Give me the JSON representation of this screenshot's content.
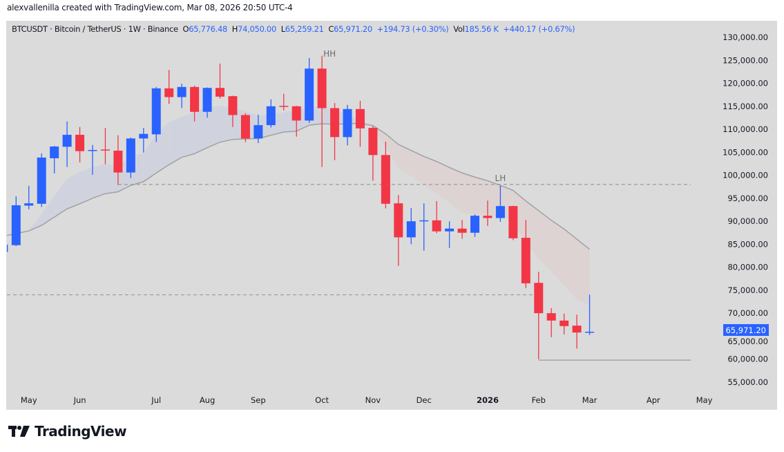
{
  "credit": "alexvallenilla created with TradingView.com, Mar 08, 2026 20:50 UTC-4",
  "legend": {
    "symbol": "BTCUSDT · Bitcoin / TetherUS · 1W · Binance",
    "o_label": "O",
    "o": "65,776.48",
    "h_label": "H",
    "h": "74,050.00",
    "l_label": "L",
    "l": "65,259.21",
    "c_label": "C",
    "c": "65,971.20",
    "change": "+194.73 (+0.30%)",
    "vol_label": "Vol",
    "vol": "185.56 K",
    "vol_change": "+440.17 (+0.67%)"
  },
  "brand": "TradingView",
  "chart_data": {
    "type": "candlestick",
    "title": "",
    "colors": {
      "up": "#2962ff",
      "down": "#f23645",
      "ma": "#a0a0a4",
      "band_up": "#d0d3dd",
      "band_down": "#ddd3d3",
      "background": "#dbdbdb",
      "price_label": "#2962ff"
    },
    "ylim": [
      53000,
      133000
    ],
    "y_ticks": [
      "55,000.00",
      "60,000.00",
      "65,000.00",
      "70,000.00",
      "75,000.00",
      "80,000.00",
      "85,000.00",
      "90,000.00",
      "95,000.00",
      "100,000.00",
      "105,000.00",
      "110,000.00",
      "115,000.00",
      "120,000.00",
      "125,000.00",
      "130,000.00"
    ],
    "y_tick_values": [
      55000,
      60000,
      65000,
      70000,
      75000,
      80000,
      85000,
      90000,
      95000,
      100000,
      105000,
      110000,
      115000,
      120000,
      125000,
      130000
    ],
    "x_ticks": [
      {
        "label": "May",
        "bar": 1.0
      },
      {
        "label": "Jun",
        "bar": 5.0
      },
      {
        "label": "Jul",
        "bar": 11.0
      },
      {
        "label": "Aug",
        "bar": 15.0
      },
      {
        "label": "Sep",
        "bar": 19.0
      },
      {
        "label": "Oct",
        "bar": 24.0
      },
      {
        "label": "Nov",
        "bar": 28.0
      },
      {
        "label": "Dec",
        "bar": 32.0
      },
      {
        "label": "2026",
        "bar": 37.0,
        "bold": true
      },
      {
        "label": "Feb",
        "bar": 41.0
      },
      {
        "label": "Mar",
        "bar": 45.0
      },
      {
        "label": "Apr",
        "bar": 50.0
      },
      {
        "label": "May",
        "bar": 54.0
      }
    ],
    "candles": [
      {
        "o": 83300,
        "h": 85000,
        "l": 83000,
        "c": 84900
      },
      {
        "o": 84800,
        "h": 95430,
        "l": 84600,
        "c": 93475
      },
      {
        "o": 93400,
        "h": 97700,
        "l": 92600,
        "c": 93900
      },
      {
        "o": 93800,
        "h": 104750,
        "l": 93100,
        "c": 103850
      },
      {
        "o": 103700,
        "h": 106400,
        "l": 100400,
        "c": 106250
      },
      {
        "o": 106200,
        "h": 111700,
        "l": 101800,
        "c": 108800
      },
      {
        "o": 108800,
        "h": 110500,
        "l": 102800,
        "c": 105250
      },
      {
        "o": 105300,
        "h": 106600,
        "l": 100100,
        "c": 105500
      },
      {
        "o": 105600,
        "h": 110300,
        "l": 102400,
        "c": 105400
      },
      {
        "o": 105350,
        "h": 108700,
        "l": 97900,
        "c": 100600
      },
      {
        "o": 100600,
        "h": 108200,
        "l": 99400,
        "c": 108000
      },
      {
        "o": 108000,
        "h": 110300,
        "l": 104950,
        "c": 109000
      },
      {
        "o": 108900,
        "h": 119200,
        "l": 107200,
        "c": 118900
      },
      {
        "o": 118900,
        "h": 122900,
        "l": 115500,
        "c": 117000
      },
      {
        "o": 117000,
        "h": 119900,
        "l": 114600,
        "c": 119200
      },
      {
        "o": 119200,
        "h": 119500,
        "l": 111700,
        "c": 113800
      },
      {
        "o": 113800,
        "h": 119100,
        "l": 112500,
        "c": 119000
      },
      {
        "o": 119000,
        "h": 124300,
        "l": 116700,
        "c": 117100
      },
      {
        "o": 117200,
        "h": 117300,
        "l": 110500,
        "c": 113100
      },
      {
        "o": 113100,
        "h": 113500,
        "l": 107200,
        "c": 108000
      },
      {
        "o": 108000,
        "h": 113200,
        "l": 107000,
        "c": 110900
      },
      {
        "o": 110900,
        "h": 116500,
        "l": 110400,
        "c": 115000
      },
      {
        "o": 115100,
        "h": 117700,
        "l": 114100,
        "c": 114900
      },
      {
        "o": 115000,
        "h": 115100,
        "l": 108400,
        "c": 111900
      },
      {
        "o": 111900,
        "h": 125500,
        "l": 111400,
        "c": 123200
      },
      {
        "o": 123200,
        "h": 126000,
        "l": 101800,
        "c": 114600
      },
      {
        "o": 114600,
        "h": 115700,
        "l": 103300,
        "c": 108300
      },
      {
        "o": 108300,
        "h": 115300,
        "l": 106500,
        "c": 114400
      },
      {
        "o": 114400,
        "h": 116200,
        "l": 106200,
        "c": 110200
      },
      {
        "o": 110300,
        "h": 110600,
        "l": 98800,
        "c": 104400
      },
      {
        "o": 104400,
        "h": 107300,
        "l": 92800,
        "c": 93800
      },
      {
        "o": 93900,
        "h": 95700,
        "l": 80300,
        "c": 86500
      },
      {
        "o": 86500,
        "h": 92900,
        "l": 85000,
        "c": 90000
      },
      {
        "o": 90000,
        "h": 93900,
        "l": 83600,
        "c": 90200
      },
      {
        "o": 90200,
        "h": 94400,
        "l": 87400,
        "c": 87800
      },
      {
        "o": 87800,
        "h": 90000,
        "l": 84200,
        "c": 88400
      },
      {
        "o": 88400,
        "h": 90300,
        "l": 86200,
        "c": 87500
      },
      {
        "o": 87500,
        "h": 91500,
        "l": 86600,
        "c": 91200
      },
      {
        "o": 91200,
        "h": 94500,
        "l": 89000,
        "c": 90700
      },
      {
        "o": 90700,
        "h": 97700,
        "l": 89900,
        "c": 93300
      },
      {
        "o": 93300,
        "h": 93400,
        "l": 85900,
        "c": 86300
      },
      {
        "o": 86400,
        "h": 90300,
        "l": 75500,
        "c": 76500
      },
      {
        "o": 76600,
        "h": 79000,
        "l": 60000,
        "c": 70000
      },
      {
        "o": 70000,
        "h": 71100,
        "l": 64800,
        "c": 68400
      },
      {
        "o": 68400,
        "h": 69900,
        "l": 65400,
        "c": 67200
      },
      {
        "o": 67300,
        "h": 69700,
        "l": 62300,
        "c": 65800
      },
      {
        "o": 65776.48,
        "h": 74050,
        "l": 65259.21,
        "c": 65971.2
      }
    ],
    "ma": [
      86760,
      87300,
      87900,
      89100,
      90900,
      92700,
      93800,
      95000,
      96000,
      96400,
      97800,
      98600,
      100500,
      102300,
      103900,
      104700,
      106000,
      107200,
      107800,
      107900,
      108000,
      108700,
      109400,
      109600,
      110900,
      111200,
      111100,
      111200,
      111300,
      110800,
      109000,
      106700,
      105400,
      104100,
      103000,
      101700,
      100500,
      99600,
      98800,
      97800,
      96700,
      94400,
      92300,
      90200,
      88300,
      86100,
      83900
    ],
    "band": [
      86760,
      87500,
      88000,
      91500,
      95500,
      99300,
      100700,
      101800,
      102500,
      102000,
      104200,
      104800,
      109000,
      111500,
      112700,
      113800,
      114900,
      115100,
      114500,
      114000,
      112900,
      113300,
      113700,
      114200,
      115000,
      114700,
      114300,
      113000,
      112200,
      110300,
      106000,
      101600,
      99800,
      97900,
      96000,
      94000,
      91800,
      91500,
      91400,
      90800,
      90300,
      85100,
      82000,
      79000,
      76000,
      73000,
      71700
    ],
    "levels": [
      {
        "price": 98000,
        "style": "dashed",
        "from_bar": 8
      },
      {
        "price": 74000,
        "style": "dashed",
        "from_bar": -1,
        "to_bar": 41
      },
      {
        "price": 59800,
        "style": "solid",
        "from_bar": 41
      }
    ],
    "annotations": [
      {
        "text": "HH",
        "bar": 24.6,
        "price": 125800
      },
      {
        "text": "LH",
        "bar": 38.0,
        "price": 98700
      }
    ],
    "last_price_label": "65,971.20"
  }
}
